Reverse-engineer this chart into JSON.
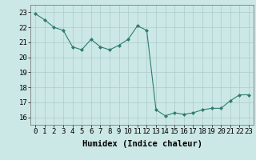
{
  "x": [
    0,
    1,
    2,
    3,
    4,
    5,
    6,
    7,
    8,
    9,
    10,
    11,
    12,
    13,
    14,
    15,
    16,
    17,
    18,
    19,
    20,
    21,
    22,
    23
  ],
  "y": [
    22.9,
    22.5,
    22.0,
    21.8,
    20.7,
    20.5,
    21.2,
    20.7,
    20.5,
    20.8,
    21.2,
    22.1,
    21.8,
    16.5,
    16.1,
    16.3,
    16.2,
    16.3,
    16.5,
    16.6,
    16.6,
    17.1,
    17.5,
    17.5
  ],
  "line_color": "#2e7d6e",
  "marker": "D",
  "marker_size": 2.0,
  "bg_color": "#cce8e6",
  "grid_color_major": "#aaccca",
  "grid_color_minor": "#aaccca",
  "xlabel": "Humidex (Indice chaleur)",
  "xlim": [
    -0.5,
    23.5
  ],
  "ylim": [
    15.5,
    23.5
  ],
  "yticks": [
    16,
    17,
    18,
    19,
    20,
    21,
    22,
    23
  ],
  "xticks": [
    0,
    1,
    2,
    3,
    4,
    5,
    6,
    7,
    8,
    9,
    10,
    11,
    12,
    13,
    14,
    15,
    16,
    17,
    18,
    19,
    20,
    21,
    22,
    23
  ],
  "tick_fontsize": 6.5,
  "label_fontsize": 7.5
}
